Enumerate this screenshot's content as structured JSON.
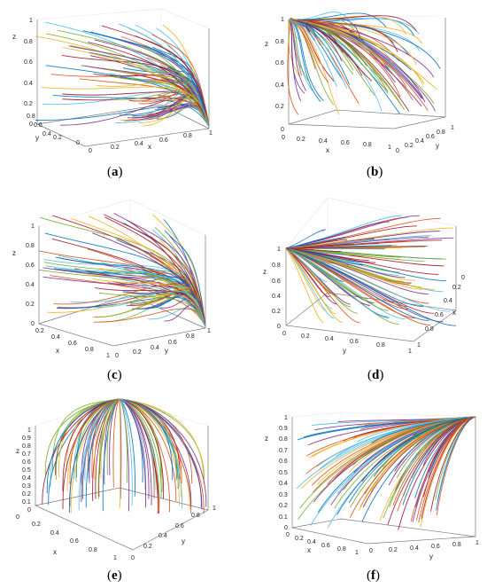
{
  "palette": [
    "#0072BD",
    "#D95319",
    "#EDB120",
    "#7E2F8E",
    "#77AC30",
    "#4DBEEE",
    "#A2142F"
  ],
  "chart_data": [
    {
      "id": "a",
      "type": "line",
      "caption": "a",
      "axes_3d": {
        "view": "x-y floor, corner at x=1,y=0",
        "xlabel": "x",
        "ylabel": "y",
        "zlabel": "z",
        "xlim": [
          0,
          1
        ],
        "ylim": [
          0,
          1
        ],
        "zlim": [
          0,
          1
        ],
        "xticks": [
          "0",
          "0.2",
          "0.4",
          "0.6",
          "0.8",
          "1"
        ],
        "yticks": [
          "0",
          "0.2",
          "0.4",
          "0.6",
          "0.8"
        ],
        "zticks": [
          "0",
          "0.2",
          "0.4",
          "0.6",
          "0.8",
          "1"
        ]
      },
      "series_description": "trajectories from random initial points converge to (x,y,z)=(1,0,0)",
      "equilibrium": [
        1,
        0,
        0
      ],
      "grid": true
    },
    {
      "id": "b",
      "type": "line",
      "caption": "b",
      "axes_3d": {
        "xlabel": "x",
        "ylabel": "y",
        "zlabel": "z",
        "xlim": [
          0,
          1
        ],
        "ylim": [
          0,
          1
        ],
        "zlim": [
          0,
          1
        ],
        "xticks": [
          "0",
          "0.2",
          "0.4",
          "0.6",
          "0.8",
          "1"
        ],
        "yticks": [
          "0",
          "0.2",
          "0.4",
          "0.6",
          "0.8",
          "1"
        ],
        "zticks": [
          "0",
          "0.2",
          "0.4",
          "0.6",
          "0.8",
          "1"
        ]
      },
      "equilibrium": [
        0,
        0,
        1
      ],
      "grid": true
    },
    {
      "id": "c",
      "type": "line",
      "caption": "c",
      "axes_3d": {
        "xlabel": "x",
        "ylabel": "y",
        "zlabel": "z",
        "xlim": [
          0,
          1
        ],
        "ylim": [
          0,
          1
        ],
        "zlim": [
          0,
          1
        ],
        "xticks": [
          "0.2",
          "0.4",
          "0.6",
          "0.8",
          "1"
        ],
        "yticks": [
          "0",
          "0.2",
          "0.4",
          "0.6",
          "0.8",
          "1"
        ],
        "zticks": [
          "0",
          "0.2",
          "0.4",
          "0.6",
          "0.8",
          "1"
        ]
      },
      "equilibrium": [
        1,
        1,
        0
      ],
      "grid": true
    },
    {
      "id": "d",
      "type": "line",
      "caption": "d",
      "axes_3d": {
        "xlabel": "x",
        "ylabel": "y",
        "zlabel": "z",
        "xlim": [
          0,
          1
        ],
        "ylim": [
          0,
          1
        ],
        "zlim": [
          0,
          1
        ],
        "xticks": [
          "0",
          "0.2",
          "0.4",
          "0.6",
          "0.8",
          "1"
        ],
        "yticks": [
          "0",
          "0.2",
          "0.4",
          "0.6",
          "0.8",
          "1"
        ],
        "zticks": [
          "0",
          "0.2",
          "0.4",
          "0.6",
          "0.8",
          "1"
        ]
      },
      "equilibrium": [
        0,
        0,
        1
      ],
      "grid": true
    },
    {
      "id": "e",
      "type": "line",
      "caption": "e",
      "axes_3d": {
        "xlabel": "x",
        "ylabel": "y",
        "zlabel": "z",
        "xlim": [
          0,
          1
        ],
        "ylim": [
          0,
          1
        ],
        "zlim": [
          0,
          1
        ],
        "xticks": [
          "0",
          "0.2",
          "0.4",
          "0.6",
          "0.8",
          "1"
        ],
        "yticks": [
          "0",
          "0.2",
          "0.4",
          "0.6",
          "0.8",
          "1"
        ],
        "zticks": [
          "0",
          "0.1",
          "0.2",
          "0.3",
          "0.4",
          "0.5",
          "0.6",
          "0.7",
          "0.8",
          "0.9",
          "1"
        ]
      },
      "equilibrium": [
        1,
        0,
        1
      ],
      "grid": true
    },
    {
      "id": "f",
      "type": "line",
      "caption": "f",
      "axes_3d": {
        "xlabel": "x",
        "ylabel": "y",
        "zlabel": "z",
        "xlim": [
          0,
          1
        ],
        "ylim": [
          0,
          1
        ],
        "zlim": [
          0,
          1
        ],
        "xticks": [
          "0",
          "0.2",
          "0.4",
          "0.6",
          "0.8",
          "1"
        ],
        "yticks": [
          "0",
          "0.2",
          "0.4",
          "0.6",
          "0.8",
          "1"
        ],
        "zticks": [
          "0",
          "0.1",
          "0.2",
          "0.3",
          "0.4",
          "0.5",
          "0.6",
          "0.7",
          "0.8",
          "0.9",
          "1"
        ]
      },
      "equilibrium": [
        1,
        1,
        1
      ],
      "grid": true
    }
  ]
}
